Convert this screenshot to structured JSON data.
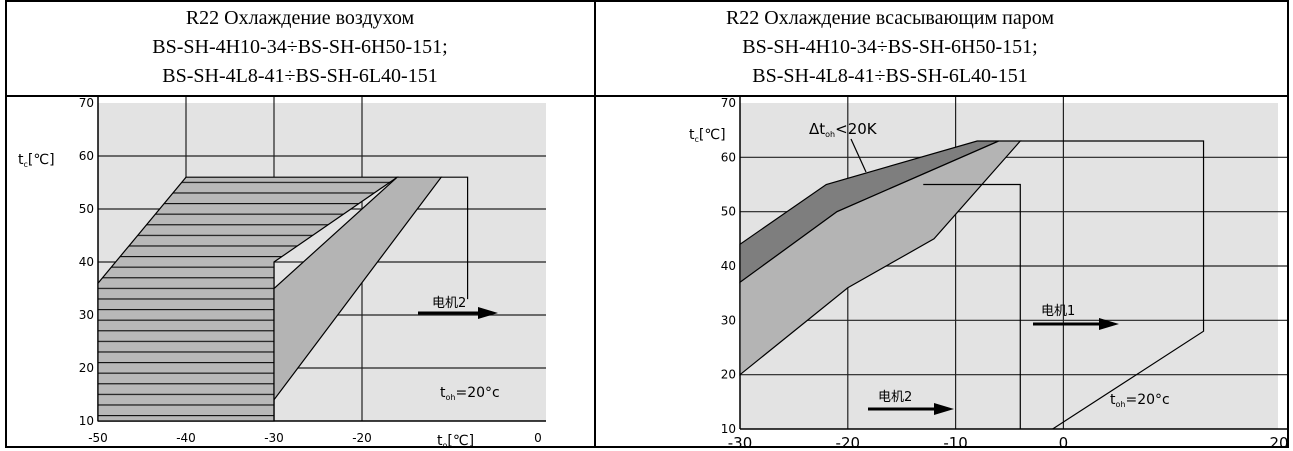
{
  "headers": {
    "left": {
      "line1": "R22 Охлаждение воздухом",
      "line2": "BS-SH-4H10-34÷BS-SH-6H50-151;",
      "line3": "BS-SH-4L8-41÷BS-SH-6L40-151"
    },
    "right": {
      "line1": "R22 Охлаждение всасывающим паром",
      "line2": "BS-SH-4H10-34÷BS-SH-6H50-151;",
      "line3": "BS-SH-4L8-41÷BS-SH-6L40-151"
    }
  },
  "chart_data": [
    {
      "type": "area",
      "title": "R22 Охлаждение воздухом",
      "xlabel": "t₀[℃]",
      "ylabel": "tc[℃]",
      "xlim": [
        -50,
        0
      ],
      "ylim": [
        10,
        70
      ],
      "x_ticks": [
        "-50",
        "-40",
        "-30",
        "-20",
        "0"
      ],
      "y_ticks": [
        "10",
        "20",
        "30",
        "40",
        "50",
        "60",
        "70"
      ],
      "grid": true,
      "regions": [
        {
          "pattern": "hatched",
          "boundary": [
            [
              -50,
              10
            ],
            [
              -50,
              36
            ],
            [
              -40,
              56
            ],
            [
              -16,
              56
            ],
            [
              -30,
              40
            ],
            [
              -30,
              10
            ]
          ]
        },
        {
          "pattern": "shaded",
          "boundary": [
            [
              -30,
              10
            ],
            [
              -30,
              35
            ],
            [
              -16,
              56
            ],
            [
              -11,
              56
            ],
            [
              -30,
              14
            ]
          ]
        }
      ],
      "envelope_line": {
        "points": [
          [
            -11,
            56
          ],
          [
            -8,
            56
          ],
          [
            -8,
            33
          ]
        ]
      },
      "annotations": {
        "motor_label": "电机2",
        "toh_label": "t",
        "toh_sub": "oh",
        "toh_value": "=20°c"
      }
    },
    {
      "type": "area",
      "title": "R22 Охлаждение всасывающим паром",
      "xlim": [
        -30,
        20
      ],
      "ylim": [
        10,
        70
      ],
      "x_ticks": [
        "-30",
        "-20",
        "-10",
        "0",
        "20"
      ],
      "y_ticks": [
        "10",
        "20",
        "30",
        "40",
        "50",
        "60",
        "70"
      ],
      "ylabel": "tc[℃]",
      "grid": true,
      "regions": [
        {
          "pattern": "dark",
          "boundary": [
            [
              -30,
              37
            ],
            [
              -30,
              44
            ],
            [
              -22,
              55
            ],
            [
              -8,
              63
            ],
            [
              -6,
              63
            ],
            [
              -21,
              50
            ]
          ]
        },
        {
          "pattern": "light",
          "boundary": [
            [
              -30,
              20
            ],
            [
              -30,
              37
            ],
            [
              -21,
              50
            ],
            [
              -6,
              63
            ],
            [
              -4,
              63
            ],
            [
              -12,
              45
            ],
            [
              -20,
              36
            ]
          ]
        }
      ],
      "envelope_lines": [
        {
          "points": [
            [
              -4,
              63
            ],
            [
              13,
              63
            ],
            [
              13,
              28
            ],
            [
              -1,
              10
            ]
          ]
        },
        {
          "points": [
            [
              -13,
              55
            ],
            [
              -4,
              55
            ],
            [
              -4,
              10
            ]
          ]
        }
      ],
      "annotations": {
        "dt_prefix": "Δt",
        "dt_sub": "oh",
        "dt_suffix": "<20K",
        "motor1_label": "电机1",
        "motor2_label": "电机2",
        "toh_label": "t",
        "toh_sub": "oh",
        "toh_value": "=20°c"
      }
    }
  ]
}
